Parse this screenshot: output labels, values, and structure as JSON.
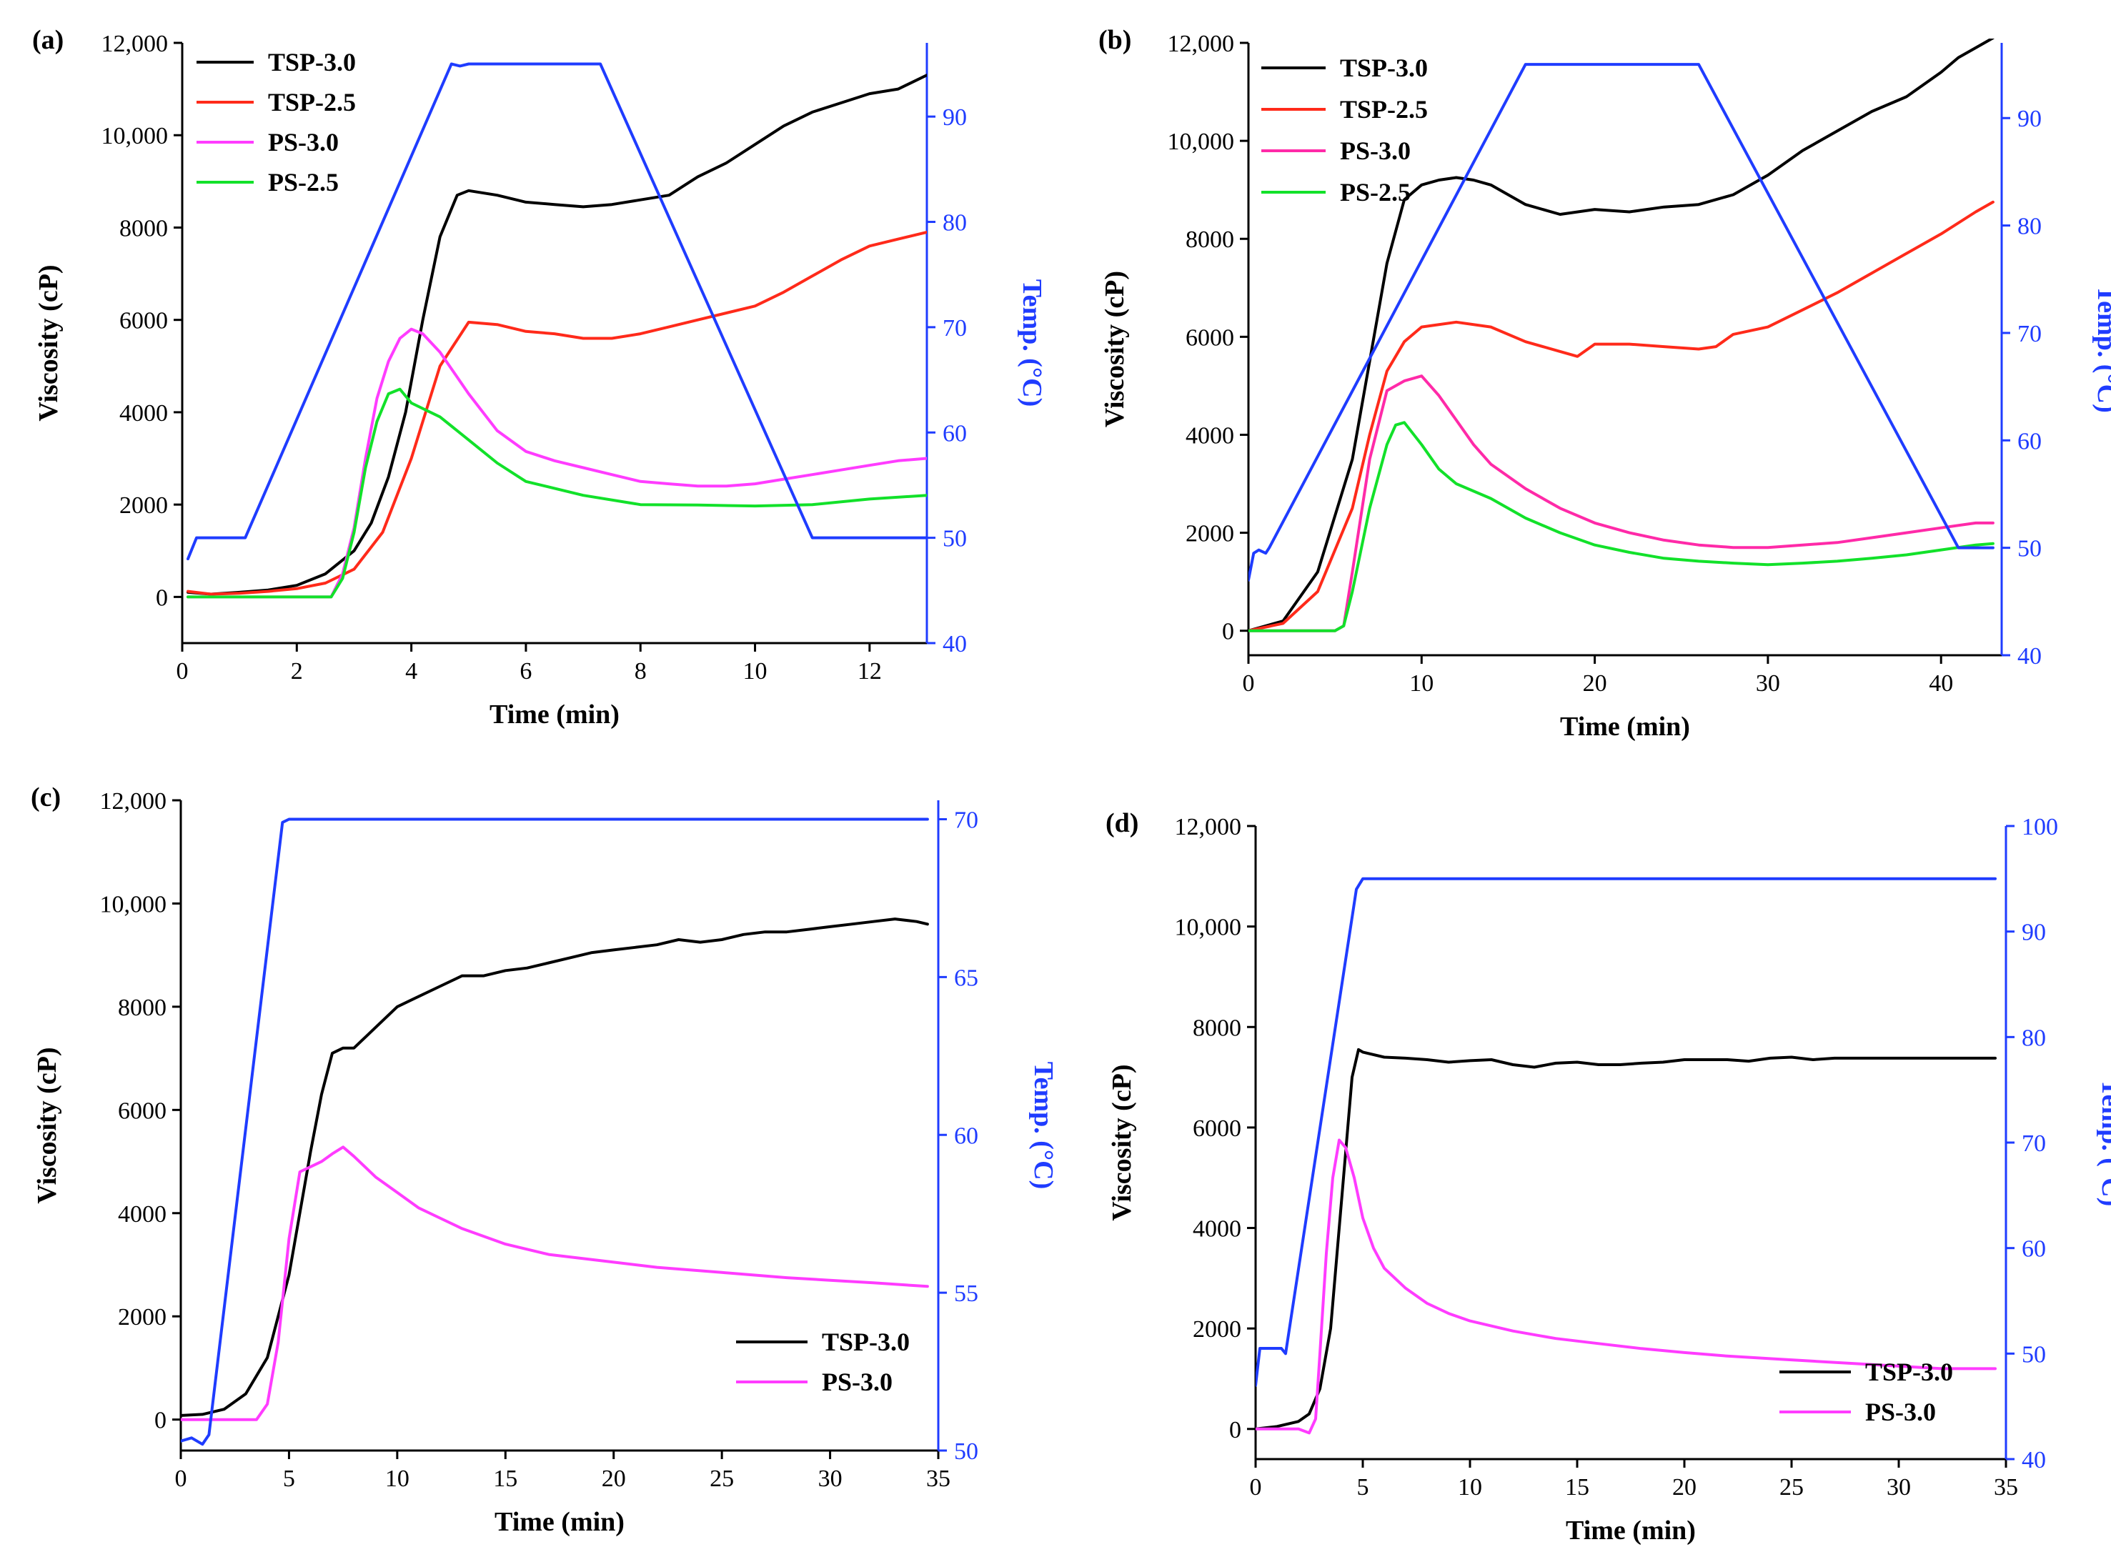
{
  "colors": {
    "TSP-3.0": "#000000",
    "TSP-2.5": "#ff2a1a",
    "PS-3.0a": "#ff3cff",
    "PS-3.0b": "#ff2aa8",
    "PS-2.5": "#12e12a",
    "temp": "#1f3cff"
  },
  "chart_data": [
    {
      "type": "line",
      "panel_label": "(a)",
      "xlabel": "Time (min)",
      "ylabel": "Viscosity (cP)",
      "y2label": "Temp. (°C)",
      "xlim": [
        0,
        13
      ],
      "ylim": [
        -1000,
        12000
      ],
      "y2lim": [
        40,
        97
      ],
      "xticks": [
        0,
        2,
        4,
        6,
        8,
        10,
        12
      ],
      "xtick_labels": [
        "0",
        "2",
        "4",
        "6",
        "8",
        "10",
        "12"
      ],
      "yticks": [
        0,
        2000,
        4000,
        6000,
        8000,
        10000,
        12000
      ],
      "ytick_labels": [
        "0",
        "2000",
        "4000",
        "6000",
        "8000",
        "10,000",
        "12,000"
      ],
      "y2ticks": [
        40,
        50,
        60,
        70,
        80,
        90
      ],
      "y2tick_labels": [
        "40",
        "50",
        "60",
        "70",
        "80",
        "90"
      ],
      "legend_position": "top-left",
      "series": [
        {
          "name": "TSP-3.0",
          "color_key": "TSP-3.0",
          "x": [
            0.1,
            0.5,
            1,
            1.5,
            2,
            2.5,
            3,
            3.3,
            3.6,
            3.9,
            4.2,
            4.5,
            4.8,
            5,
            5.5,
            6,
            6.5,
            7,
            7.5,
            8,
            8.5,
            9,
            9.5,
            10,
            10.5,
            11,
            11.5,
            12,
            12.5,
            13
          ],
          "y": [
            100,
            60,
            100,
            150,
            250,
            500,
            1000,
            1600,
            2600,
            4000,
            6000,
            7800,
            8700,
            8800,
            8700,
            8550,
            8500,
            8450,
            8500,
            8600,
            8700,
            9100,
            9400,
            9800,
            10200,
            10500,
            10700,
            10900,
            11000,
            11300
          ]
        },
        {
          "name": "TSP-2.5",
          "color_key": "TSP-2.5",
          "x": [
            0.1,
            0.5,
            1,
            1.5,
            2,
            2.5,
            3,
            3.5,
            4,
            4.5,
            5,
            5.5,
            6,
            6.5,
            7,
            7.5,
            8,
            8.5,
            9,
            9.5,
            10,
            10.5,
            11,
            11.5,
            12,
            12.5,
            13
          ],
          "y": [
            120,
            60,
            80,
            120,
            180,
            300,
            600,
            1400,
            3000,
            5000,
            5950,
            5900,
            5750,
            5700,
            5600,
            5600,
            5700,
            5850,
            6000,
            6150,
            6300,
            6600,
            6950,
            7300,
            7600,
            7750,
            7900
          ]
        },
        {
          "name": "PS-3.0",
          "color_key": "PS-3.0a",
          "x": [
            0.1,
            1,
            2,
            2.6,
            2.8,
            3,
            3.2,
            3.4,
            3.6,
            3.8,
            4,
            4.2,
            4.5,
            5,
            5.5,
            6,
            6.5,
            7,
            7.5,
            8,
            8.5,
            9,
            9.5,
            10,
            10.5,
            11,
            11.5,
            12,
            12.5,
            13
          ],
          "y": [
            0,
            0,
            0,
            0,
            500,
            1500,
            3000,
            4300,
            5100,
            5600,
            5800,
            5700,
            5300,
            4400,
            3600,
            3150,
            2950,
            2800,
            2650,
            2500,
            2450,
            2400,
            2400,
            2450,
            2550,
            2650,
            2750,
            2850,
            2950,
            3000
          ]
        },
        {
          "name": "PS-2.5",
          "color_key": "PS-2.5",
          "x": [
            0.1,
            1,
            2,
            2.6,
            2.8,
            3,
            3.2,
            3.4,
            3.6,
            3.8,
            4,
            4.5,
            5,
            5.5,
            6,
            7,
            8,
            9,
            10,
            11,
            12,
            13
          ],
          "y": [
            0,
            0,
            0,
            0,
            400,
            1400,
            2800,
            3800,
            4400,
            4500,
            4200,
            3900,
            3400,
            2900,
            2500,
            2200,
            2000,
            1990,
            1970,
            2000,
            2120,
            2200
          ]
        },
        {
          "name": "Temp",
          "axis": "right",
          "color_key": "temp",
          "x": [
            0.1,
            0.25,
            0.5,
            1,
            1.1,
            4.7,
            4.85,
            5,
            7.3,
            11,
            11.1,
            13
          ],
          "y": [
            48,
            50,
            50,
            50,
            50,
            95,
            94.8,
            95,
            95,
            50,
            50,
            50
          ]
        }
      ]
    },
    {
      "type": "line",
      "panel_label": "(b)",
      "xlabel": "Time (min)",
      "ylabel": "Viscosity (cP)",
      "y2label": "Temp. (°C)",
      "xlim": [
        0,
        43.5
      ],
      "ylim": [
        -500,
        12000
      ],
      "y2lim": [
        40,
        97
      ],
      "xticks": [
        0,
        10,
        20,
        30,
        40
      ],
      "xtick_labels": [
        "0",
        "10",
        "20",
        "30",
        "40"
      ],
      "yticks": [
        0,
        2000,
        4000,
        6000,
        8000,
        10000,
        12000
      ],
      "ytick_labels": [
        "0",
        "2000",
        "4000",
        "6000",
        "8000",
        "10,000",
        "12,000"
      ],
      "y2ticks": [
        40,
        50,
        60,
        70,
        80,
        90
      ],
      "y2tick_labels": [
        "40",
        "50",
        "60",
        "70",
        "80",
        "90"
      ],
      "legend_position": "top-left",
      "series": [
        {
          "name": "TSP-3.0",
          "color_key": "TSP-3.0",
          "x": [
            0,
            2,
            4,
            6,
            7,
            8,
            9,
            10,
            11,
            12,
            13,
            14,
            16,
            18,
            20,
            22,
            24,
            26,
            28,
            30,
            32,
            34,
            36,
            38,
            40,
            41,
            42,
            43
          ],
          "y": [
            0,
            200,
            1200,
            3500,
            5500,
            7500,
            8800,
            9100,
            9200,
            9250,
            9200,
            9100,
            8700,
            8500,
            8600,
            8550,
            8650,
            8700,
            8900,
            9300,
            9800,
            10200,
            10600,
            10900,
            11400,
            11700,
            11900,
            12100
          ]
        },
        {
          "name": "TSP-2.5",
          "color_key": "TSP-2.5",
          "x": [
            0,
            2,
            4,
            6,
            7,
            8,
            9,
            10,
            12,
            14,
            16,
            18,
            19,
            20,
            22,
            24,
            26,
            27,
            28,
            30,
            32,
            34,
            36,
            38,
            40,
            42,
            43
          ],
          "y": [
            0,
            150,
            800,
            2500,
            4000,
            5300,
            5900,
            6200,
            6300,
            6200,
            5900,
            5700,
            5600,
            5850,
            5850,
            5800,
            5750,
            5800,
            6050,
            6200,
            6550,
            6900,
            7300,
            7700,
            8100,
            8550,
            8750
          ]
        },
        {
          "name": "PS-3.0",
          "color_key": "PS-3.0b",
          "x": [
            0,
            5,
            5.5,
            6,
            7,
            8,
            9,
            10,
            11,
            12,
            13,
            14,
            16,
            18,
            20,
            22,
            24,
            26,
            28,
            30,
            32,
            34,
            36,
            38,
            40,
            42,
            43
          ],
          "y": [
            0,
            0,
            100,
            1200,
            3500,
            4900,
            5100,
            5200,
            4800,
            4300,
            3800,
            3400,
            2900,
            2500,
            2200,
            2000,
            1850,
            1750,
            1700,
            1700,
            1750,
            1800,
            1900,
            2000,
            2100,
            2200,
            2200
          ]
        },
        {
          "name": "PS-2.5",
          "color_key": "PS-2.5",
          "x": [
            0,
            5,
            5.5,
            6,
            7,
            8,
            8.5,
            9,
            10,
            11,
            12,
            14,
            16,
            18,
            20,
            22,
            24,
            26,
            28,
            30,
            32,
            34,
            36,
            38,
            40,
            42,
            43
          ],
          "y": [
            0,
            0,
            100,
            800,
            2500,
            3800,
            4200,
            4250,
            3800,
            3300,
            3000,
            2700,
            2300,
            2000,
            1750,
            1600,
            1480,
            1420,
            1380,
            1350,
            1380,
            1420,
            1480,
            1550,
            1650,
            1750,
            1780
          ]
        },
        {
          "name": "Temp",
          "axis": "right",
          "color_key": "temp",
          "x": [
            0,
            0.3,
            0.6,
            1,
            1.2,
            16,
            26,
            41,
            41.5,
            43
          ],
          "y": [
            47,
            49.5,
            49.8,
            49.5,
            50,
            95,
            95,
            50,
            50,
            50
          ]
        }
      ]
    },
    {
      "type": "line",
      "panel_label": "(c)",
      "xlabel": "Time (min)",
      "ylabel": "Viscosity (cP)",
      "y2label": "Temp. (°C)",
      "xlim": [
        0,
        35
      ],
      "ylim": [
        -600,
        12000
      ],
      "y2lim": [
        50,
        70.6
      ],
      "xticks": [
        0,
        5,
        10,
        15,
        20,
        25,
        30,
        35
      ],
      "xtick_labels": [
        "0",
        "5",
        "10",
        "15",
        "20",
        "25",
        "30",
        "35"
      ],
      "yticks": [
        0,
        2000,
        4000,
        6000,
        8000,
        10000,
        12000
      ],
      "ytick_labels": [
        "0",
        "2000",
        "4000",
        "6000",
        "8000",
        "10,000",
        "12,000"
      ],
      "y2ticks": [
        50,
        55,
        60,
        65,
        70
      ],
      "y2tick_labels": [
        "50",
        "55",
        "60",
        "65",
        "70"
      ],
      "legend_position": "bottom-right",
      "series": [
        {
          "name": "TSP-3.0",
          "color_key": "TSP-3.0",
          "x": [
            0,
            1,
            2,
            3,
            4,
            5,
            6,
            6.5,
            7,
            7.5,
            8,
            9,
            10,
            11,
            12,
            13,
            14,
            15,
            16,
            17,
            18,
            19,
            20,
            21,
            22,
            23,
            24,
            25,
            26,
            27,
            28,
            29,
            30,
            31,
            32,
            33,
            34,
            34.5
          ],
          "y": [
            80,
            100,
            200,
            500,
            1200,
            2800,
            5200,
            6300,
            7100,
            7200,
            7200,
            7600,
            8000,
            8200,
            8400,
            8600,
            8600,
            8700,
            8750,
            8850,
            8950,
            9050,
            9100,
            9150,
            9200,
            9300,
            9250,
            9300,
            9400,
            9450,
            9450,
            9500,
            9550,
            9600,
            9650,
            9700,
            9650,
            9600
          ]
        },
        {
          "name": "PS-3.0",
          "color_key": "PS-3.0a",
          "x": [
            0,
            3.5,
            4,
            4.5,
            5,
            5.5,
            6,
            6.5,
            7,
            7.5,
            8,
            9,
            10,
            11,
            12,
            13,
            14,
            15,
            17,
            20,
            22,
            25,
            28,
            30,
            32,
            34.5
          ],
          "y": [
            0,
            0,
            300,
            1500,
            3500,
            4800,
            4900,
            5000,
            5150,
            5280,
            5100,
            4700,
            4400,
            4100,
            3900,
            3700,
            3550,
            3400,
            3200,
            3050,
            2950,
            2850,
            2750,
            2700,
            2650,
            2580
          ]
        },
        {
          "name": "Temp",
          "axis": "right",
          "color_key": "temp",
          "x": [
            0,
            0.5,
            1,
            1.3,
            4.7,
            5,
            34.5
          ],
          "y": [
            50.3,
            50.4,
            50.2,
            50.5,
            69.9,
            70,
            70
          ]
        }
      ]
    },
    {
      "type": "line",
      "panel_label": "(d)",
      "xlabel": "Time (min)",
      "ylabel": "Viscosity (cP)",
      "y2label": "Temp. (°C)",
      "xlim": [
        0,
        35
      ],
      "ylim": [
        -600,
        12000
      ],
      "y2lim": [
        40,
        100
      ],
      "xticks": [
        0,
        5,
        10,
        15,
        20,
        25,
        30,
        35
      ],
      "xtick_labels": [
        "0",
        "5",
        "10",
        "15",
        "20",
        "25",
        "30",
        "35"
      ],
      "yticks": [
        0,
        2000,
        4000,
        6000,
        8000,
        10000,
        12000
      ],
      "ytick_labels": [
        "0",
        "2000",
        "4000",
        "6000",
        "8000",
        "10,000",
        "12,000"
      ],
      "y2ticks": [
        40,
        50,
        60,
        70,
        80,
        90,
        100
      ],
      "y2tick_labels": [
        "40",
        "50",
        "60",
        "70",
        "80",
        "90",
        "100"
      ],
      "legend_position": "bottom-right",
      "series": [
        {
          "name": "TSP-3.0",
          "color_key": "TSP-3.0",
          "x": [
            0,
            1,
            2,
            2.5,
            3,
            3.5,
            4,
            4.5,
            4.8,
            5,
            6,
            7,
            8,
            9,
            10,
            11,
            12,
            13,
            14,
            15,
            16,
            17,
            18,
            19,
            20,
            21,
            22,
            23,
            24,
            25,
            26,
            27,
            28,
            29,
            30,
            31,
            32,
            33,
            34.5
          ],
          "y": [
            0,
            50,
            150,
            300,
            800,
            2000,
            4500,
            7000,
            7550,
            7500,
            7400,
            7380,
            7350,
            7300,
            7330,
            7350,
            7250,
            7200,
            7280,
            7300,
            7250,
            7250,
            7280,
            7300,
            7350,
            7350,
            7350,
            7320,
            7380,
            7400,
            7350,
            7380,
            7380,
            7380,
            7380,
            7380,
            7380,
            7380,
            7380
          ]
        },
        {
          "name": "PS-3.0",
          "color_key": "PS-3.0a",
          "x": [
            0,
            2,
            2.5,
            2.8,
            3,
            3.3,
            3.6,
            3.9,
            4.2,
            4.6,
            5,
            5.5,
            6,
            7,
            8,
            9,
            10,
            12,
            14,
            16,
            18,
            20,
            22,
            24,
            26,
            28,
            30,
            32,
            34.5
          ],
          "y": [
            0,
            0,
            -80,
            200,
            1500,
            3500,
            5000,
            5750,
            5600,
            5000,
            4200,
            3600,
            3200,
            2800,
            2500,
            2300,
            2150,
            1950,
            1800,
            1700,
            1600,
            1520,
            1450,
            1400,
            1350,
            1300,
            1250,
            1200,
            1200
          ]
        },
        {
          "name": "Temp",
          "axis": "right",
          "color_key": "temp",
          "x": [
            0,
            0.2,
            0.5,
            1.2,
            1.4,
            4.7,
            5,
            34.5
          ],
          "y": [
            47,
            50.5,
            50.5,
            50.5,
            50,
            94,
            95,
            95
          ]
        }
      ]
    }
  ]
}
